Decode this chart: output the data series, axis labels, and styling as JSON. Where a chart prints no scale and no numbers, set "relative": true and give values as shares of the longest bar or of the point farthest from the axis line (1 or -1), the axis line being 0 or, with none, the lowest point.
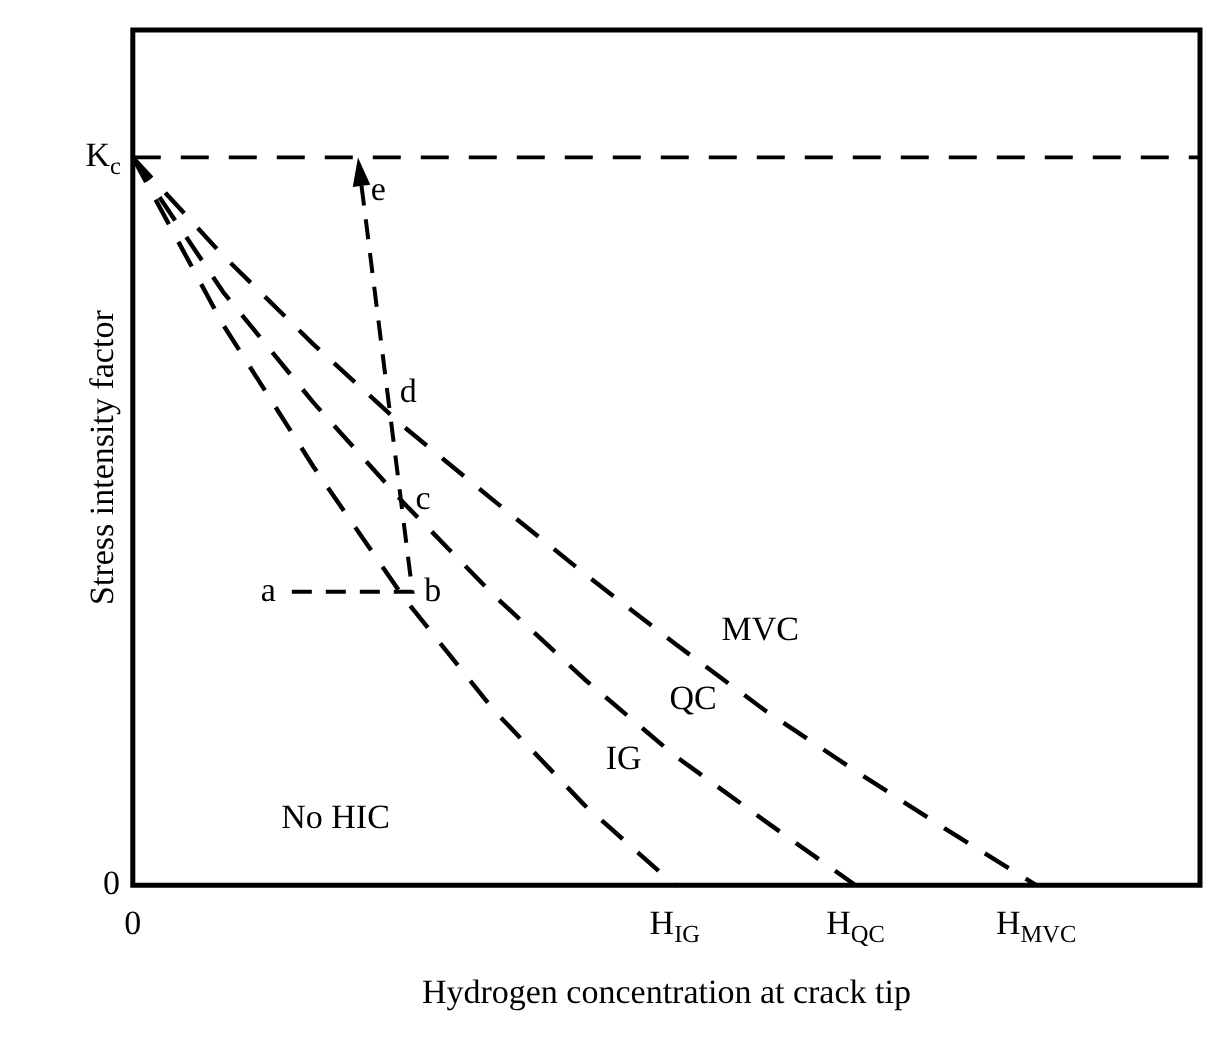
{
  "chart_data": {
    "type": "line",
    "xlabel": "Hydrogen concentration at crack tip",
    "ylabel": "Stress intensity factor",
    "relative": true,
    "grid": false,
    "legend": false,
    "line_style": "dashed",
    "categories": [
      "0",
      null,
      null,
      null,
      null,
      null,
      "H$_{IG}$",
      null,
      "H$_{QC}$",
      null,
      "H$_{MVC}$",
      null
    ],
    "series": [
      {
        "color": "#000000",
        "values": [
          1,
          0.77,
          0.575,
          0.395,
          0.24,
          0.11,
          0,
          null,
          null,
          null,
          null,
          null
        ]
      },
      {
        "color": "#000000",
        "values": [
          1,
          0.815,
          0.663,
          0.525,
          0.398,
          0.283,
          0.178,
          0.088,
          0,
          null,
          null,
          null
        ]
      },
      {
        "color": "#000000",
        "values": [
          1,
          0.865,
          0.743,
          0.63,
          0.528,
          0.428,
          0.332,
          0.24,
          0.157,
          0.077,
          0,
          null
        ]
      }
    ],
    "ref_lines": [
      {
        "axis": "y",
        "value": 1,
        "label": "K$_{c}$",
        "color": "#000000",
        "line_style": "dashed"
      }
    ],
    "annotations": [
      "0",
      "a",
      "b",
      "c",
      "d",
      "e",
      "MVC",
      "QC",
      "IG",
      "No HIC"
    ]
  }
}
